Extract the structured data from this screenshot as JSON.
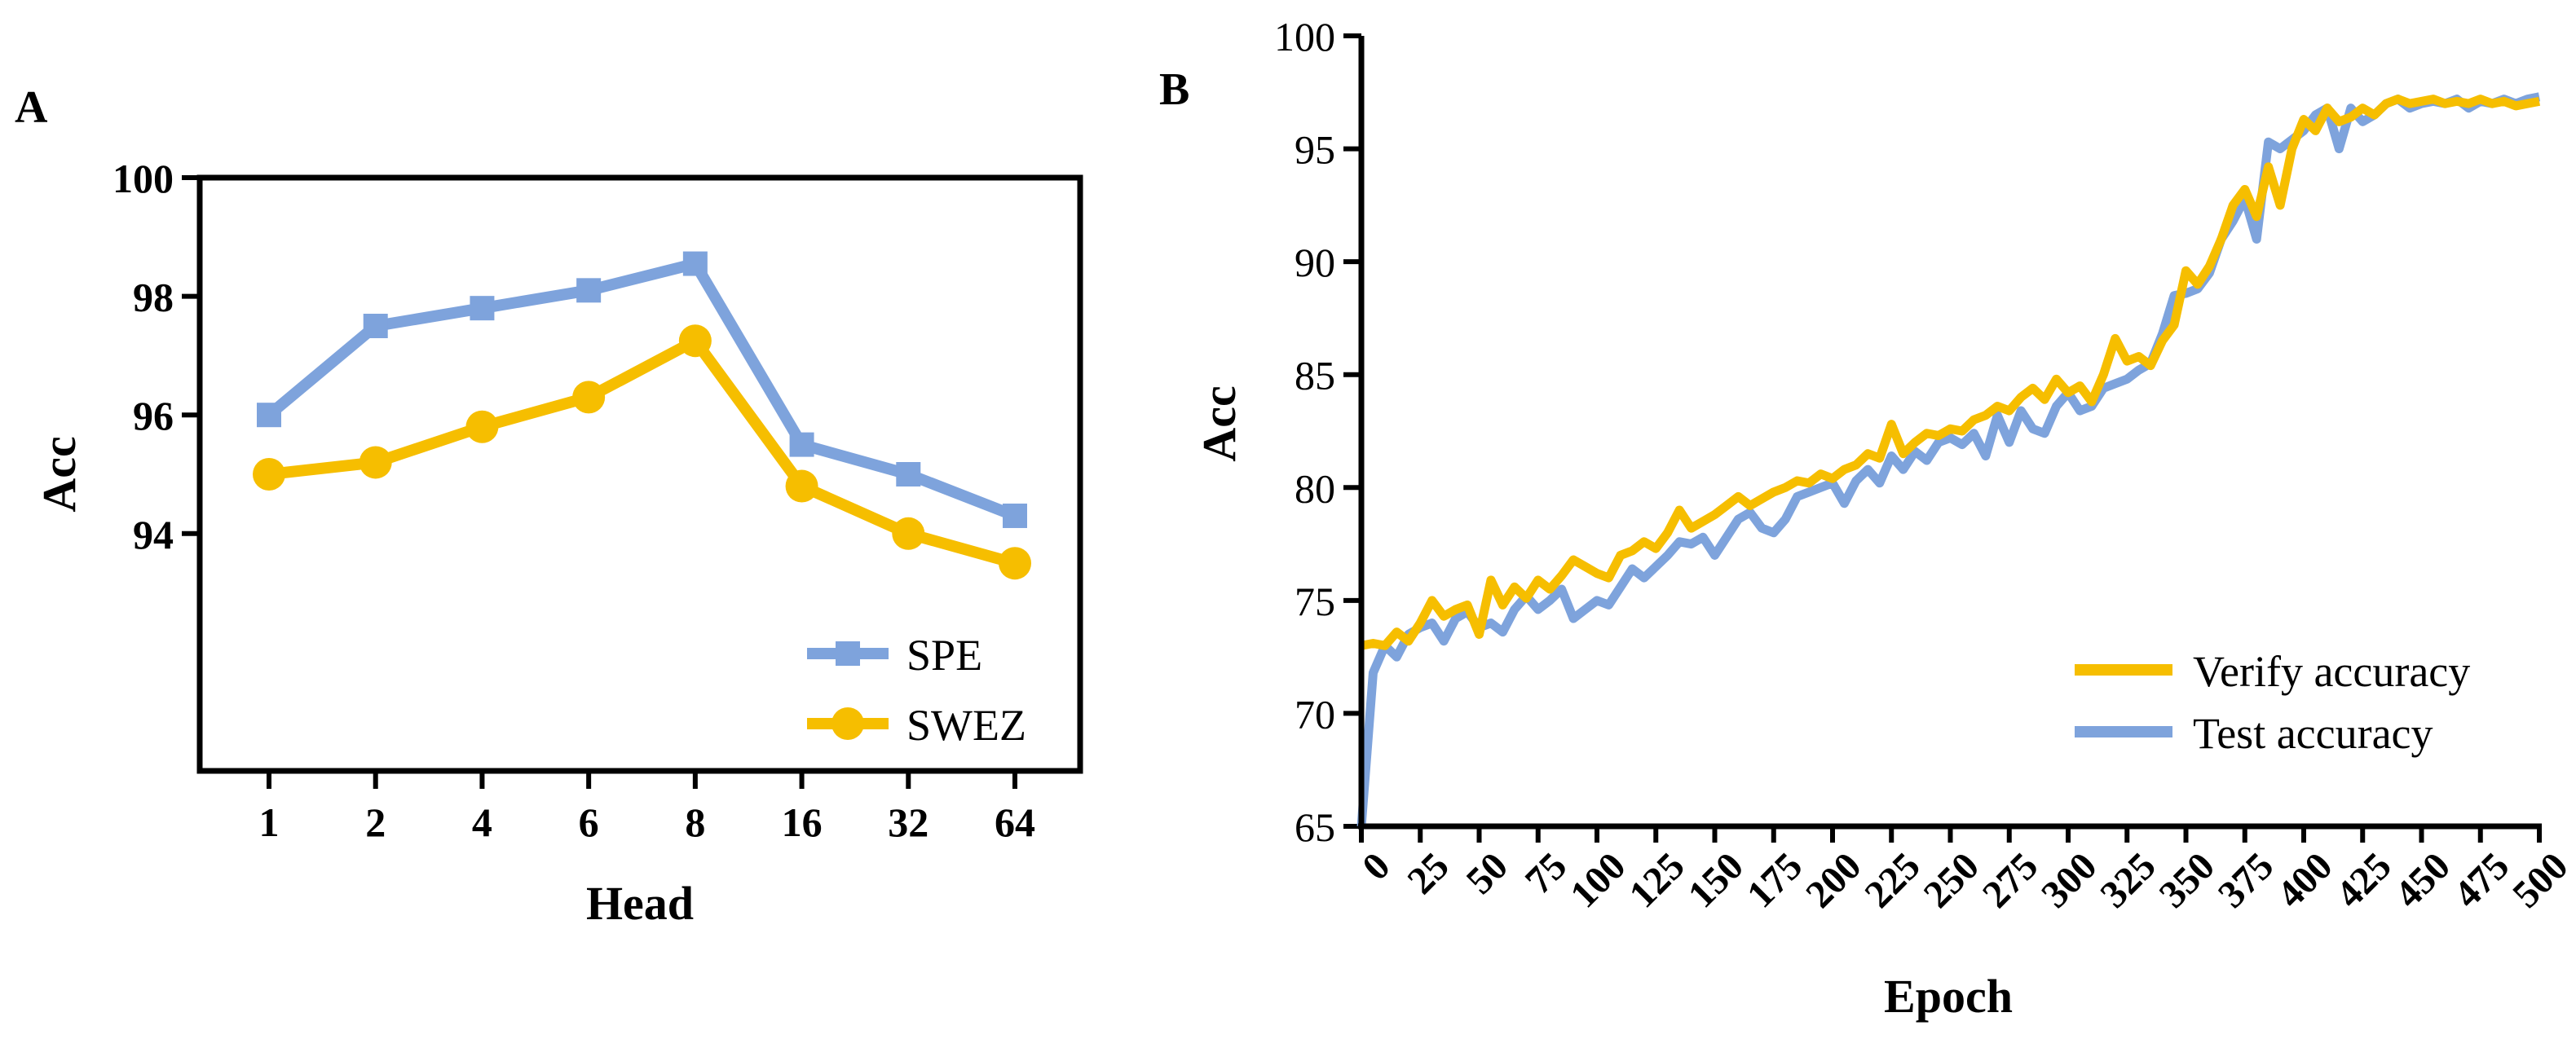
{
  "colors": {
    "spe": "#7ea3dc",
    "swez": "#f6be00",
    "verify": "#f6be00",
    "test": "#7ea3dc",
    "axis": "#000000"
  },
  "chart_data": [
    {
      "panel_label": "A",
      "type": "line",
      "categories": [
        "1",
        "2",
        "4",
        "6",
        "8",
        "16",
        "32",
        "64"
      ],
      "series": [
        {
          "name": "SPE",
          "marker": "square",
          "values": [
            96.0,
            97.5,
            97.8,
            98.1,
            98.55,
            95.5,
            95.0,
            94.3
          ]
        },
        {
          "name": "SWEZ",
          "marker": "circle",
          "values": [
            95.0,
            95.2,
            95.8,
            96.3,
            97.25,
            94.8,
            94.0,
            93.5
          ]
        }
      ],
      "title": "",
      "xlabel": "Head",
      "ylabel": "Acc",
      "ylim": [
        90,
        100
      ],
      "yticks": [
        94,
        96,
        98,
        100
      ],
      "grid": false,
      "legend": "bottom-right"
    },
    {
      "panel_label": "B",
      "type": "line",
      "xlim": [
        0,
        500
      ],
      "xticks": [
        0,
        25,
        50,
        75,
        100,
        125,
        150,
        175,
        200,
        225,
        250,
        275,
        300,
        325,
        350,
        375,
        400,
        425,
        450,
        475,
        500
      ],
      "ylim": [
        65,
        100
      ],
      "yticks": [
        65,
        70,
        75,
        80,
        85,
        90,
        95,
        100
      ],
      "xlabel": "Epoch",
      "ylabel": "Acc",
      "title": "",
      "grid": false,
      "legend": "bottom-right",
      "series": [
        {
          "name": "Verify accuracy",
          "x": [
            0,
            5,
            10,
            15,
            20,
            25,
            30,
            35,
            40,
            45,
            50,
            55,
            60,
            65,
            70,
            75,
            80,
            85,
            90,
            95,
            100,
            105,
            110,
            115,
            120,
            125,
            130,
            135,
            140,
            145,
            150,
            155,
            160,
            165,
            170,
            175,
            180,
            185,
            190,
            195,
            200,
            205,
            210,
            215,
            220,
            225,
            230,
            235,
            240,
            245,
            250,
            255,
            260,
            265,
            270,
            275,
            280,
            285,
            290,
            295,
            300,
            305,
            310,
            315,
            320,
            325,
            330,
            335,
            340,
            345,
            350,
            355,
            360,
            365,
            370,
            375,
            380,
            385,
            390,
            395,
            400,
            405,
            410,
            415,
            420,
            425,
            430,
            435,
            440,
            445,
            450,
            455,
            460,
            465,
            470,
            475,
            480,
            485,
            490,
            495,
            500
          ],
          "values": [
            73.0,
            73.1,
            73.0,
            73.6,
            73.2,
            74.0,
            75.0,
            74.3,
            74.6,
            74.8,
            73.5,
            75.9,
            74.8,
            75.6,
            75.1,
            75.9,
            75.5,
            76.1,
            76.8,
            76.5,
            76.2,
            76.0,
            77.0,
            77.2,
            77.6,
            77.3,
            78.0,
            79.0,
            78.2,
            78.5,
            78.8,
            79.2,
            79.6,
            79.2,
            79.5,
            79.8,
            80.0,
            80.3,
            80.2,
            80.6,
            80.4,
            80.8,
            81.0,
            81.5,
            81.3,
            82.8,
            81.5,
            82.0,
            82.4,
            82.3,
            82.6,
            82.5,
            83.0,
            83.2,
            83.6,
            83.4,
            84.0,
            84.4,
            83.9,
            84.8,
            84.2,
            84.5,
            83.8,
            85.0,
            86.6,
            85.6,
            85.8,
            85.4,
            86.5,
            87.2,
            89.6,
            89.0,
            89.8,
            91.0,
            92.5,
            93.2,
            92.0,
            94.2,
            92.5,
            95.0,
            96.3,
            95.8,
            96.8,
            96.2,
            96.4,
            96.8,
            96.5,
            97.0,
            97.2,
            97.0,
            97.1,
            97.2,
            97.0,
            97.1,
            97.0,
            97.2,
            97.0,
            97.1,
            96.9,
            97.0,
            97.1
          ]
        },
        {
          "name": "Test accuracy",
          "x": [
            0,
            5,
            10,
            15,
            20,
            25,
            30,
            35,
            40,
            45,
            50,
            55,
            60,
            65,
            70,
            75,
            80,
            85,
            90,
            95,
            100,
            105,
            110,
            115,
            120,
            125,
            130,
            135,
            140,
            145,
            150,
            155,
            160,
            165,
            170,
            175,
            180,
            185,
            190,
            195,
            200,
            205,
            210,
            215,
            220,
            225,
            230,
            235,
            240,
            245,
            250,
            255,
            260,
            265,
            270,
            275,
            280,
            285,
            290,
            295,
            300,
            305,
            310,
            315,
            320,
            325,
            330,
            335,
            340,
            345,
            350,
            355,
            360,
            365,
            370,
            375,
            380,
            385,
            390,
            395,
            400,
            405,
            410,
            415,
            420,
            425,
            430,
            435,
            440,
            445,
            450,
            455,
            460,
            465,
            470,
            475,
            480,
            485,
            490,
            495,
            500
          ],
          "values": [
            65.0,
            71.8,
            73.0,
            72.5,
            73.5,
            73.8,
            74.0,
            73.2,
            74.2,
            74.5,
            73.8,
            74.0,
            73.6,
            74.6,
            75.2,
            74.6,
            75.0,
            75.5,
            74.2,
            74.6,
            75.0,
            74.8,
            75.6,
            76.4,
            76.0,
            76.5,
            77.0,
            77.6,
            77.5,
            77.8,
            77.0,
            77.8,
            78.6,
            78.9,
            78.2,
            78.0,
            78.6,
            79.6,
            79.8,
            80.0,
            80.2,
            79.3,
            80.3,
            80.8,
            80.2,
            81.4,
            80.8,
            81.6,
            81.2,
            82.0,
            82.2,
            81.9,
            82.4,
            81.4,
            83.2,
            82.0,
            83.4,
            82.6,
            82.4,
            83.6,
            84.2,
            83.4,
            83.6,
            84.4,
            84.6,
            84.8,
            85.2,
            85.5,
            86.8,
            88.5,
            88.6,
            88.8,
            89.5,
            91.0,
            91.8,
            92.8,
            91.0,
            95.3,
            95.0,
            95.4,
            95.8,
            96.5,
            96.8,
            95.0,
            96.8,
            96.2,
            96.5,
            97.0,
            97.2,
            96.8,
            97.0,
            97.1,
            97.0,
            97.2,
            96.8,
            97.1,
            97.0,
            97.2,
            97.0,
            97.2,
            97.3
          ]
        }
      ]
    }
  ]
}
